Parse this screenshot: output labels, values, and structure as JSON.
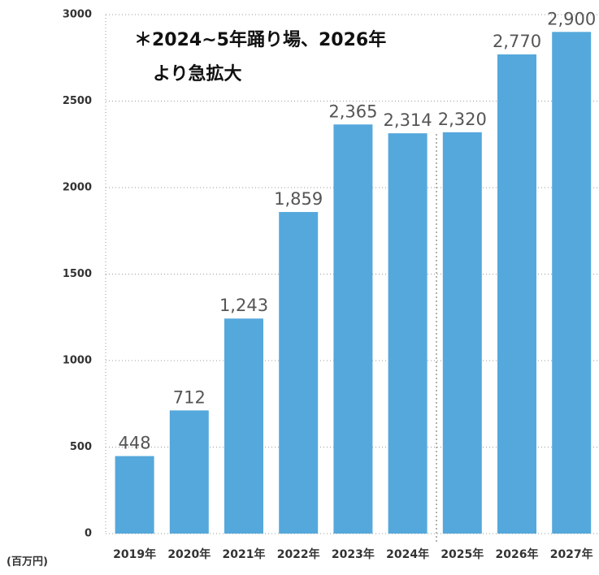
{
  "chart_data": {
    "type": "bar",
    "annotations": [
      "＊2024~5年踊り場、2026年",
      "より急拡大"
    ],
    "y_label": "(百万円)",
    "categories": [
      "2019年",
      "2020年",
      "2021年",
      "2022年",
      "2023年",
      "2024年",
      "2025年",
      "2026年",
      "2027年"
    ],
    "values": [
      448,
      712,
      1243,
      1859,
      2365,
      2314,
      2320,
      2770,
      2900
    ],
    "value_labels": [
      "448",
      "712",
      "1,243",
      "1,859",
      "2,365",
      "2,314",
      "2,320",
      "2,770",
      "2,900"
    ],
    "color": "#55a8dc",
    "ylim": [
      0,
      3000
    ],
    "yticks": [
      0,
      500,
      1000,
      1500,
      2000,
      2500,
      3000
    ],
    "grid": true
  }
}
